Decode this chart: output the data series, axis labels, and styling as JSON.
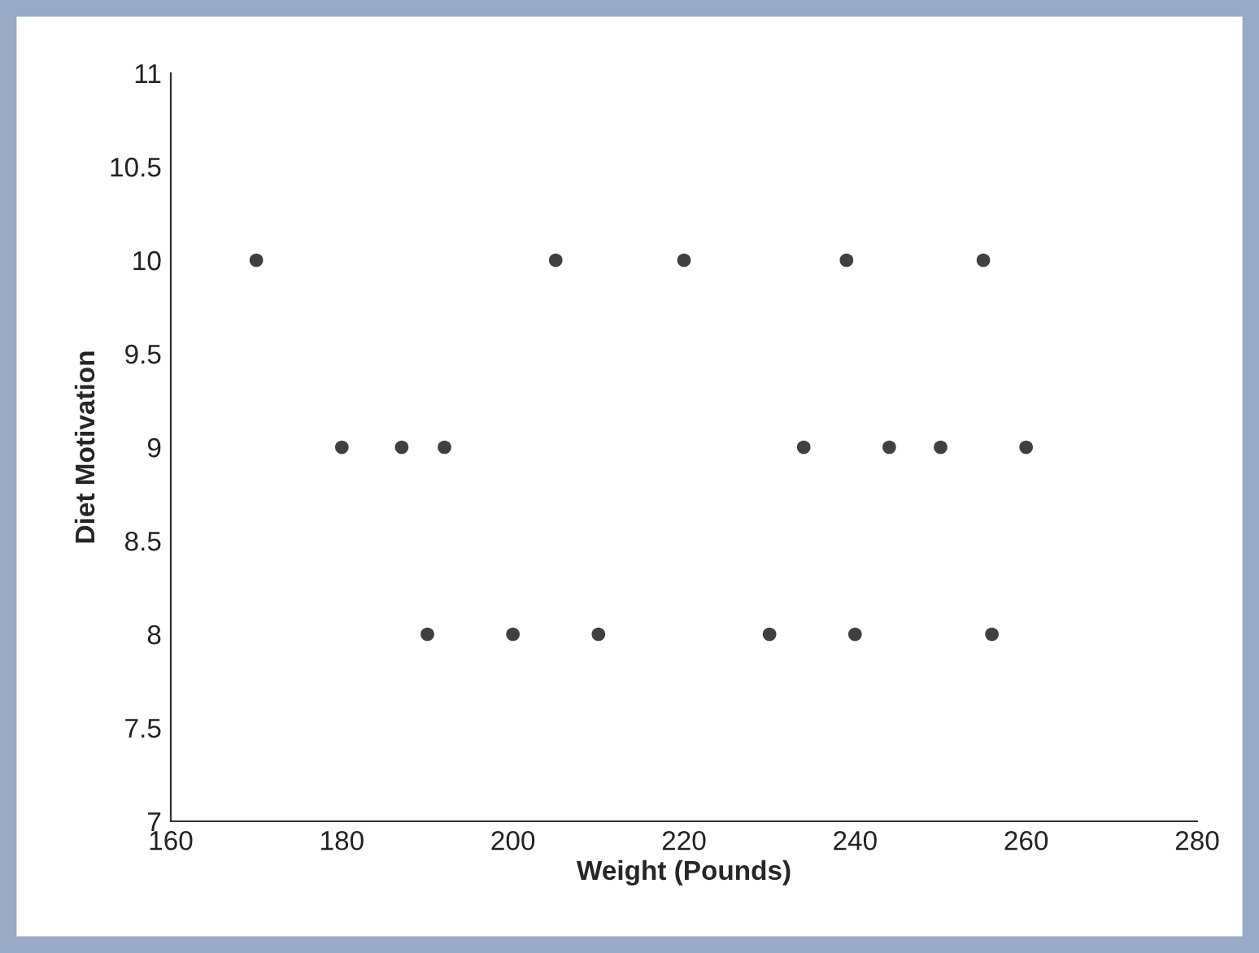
{
  "chart_data": {
    "type": "scatter",
    "xlabel": "Weight (Pounds)",
    "ylabel": "Diet Motivation",
    "x": [
      170,
      205,
      220,
      239,
      255,
      180,
      187,
      192,
      234,
      244,
      250,
      260,
      190,
      200,
      210,
      230,
      240,
      256
    ],
    "series": [
      {
        "color": "#404040",
        "values": [
          10,
          10,
          10,
          10,
          10,
          9,
          9,
          9,
          9,
          9,
          9,
          9,
          8,
          8,
          8,
          8,
          8,
          8
        ]
      }
    ],
    "xlim": [
      160,
      280
    ],
    "xticks": [
      160,
      180,
      200,
      220,
      240,
      260,
      280
    ],
    "ylim": [
      7,
      11
    ],
    "yticks": [
      7,
      7.5,
      8,
      8.5,
      9,
      9.5,
      10,
      10.5,
      11
    ],
    "marker": "circle",
    "grid": false,
    "legend": false
  }
}
